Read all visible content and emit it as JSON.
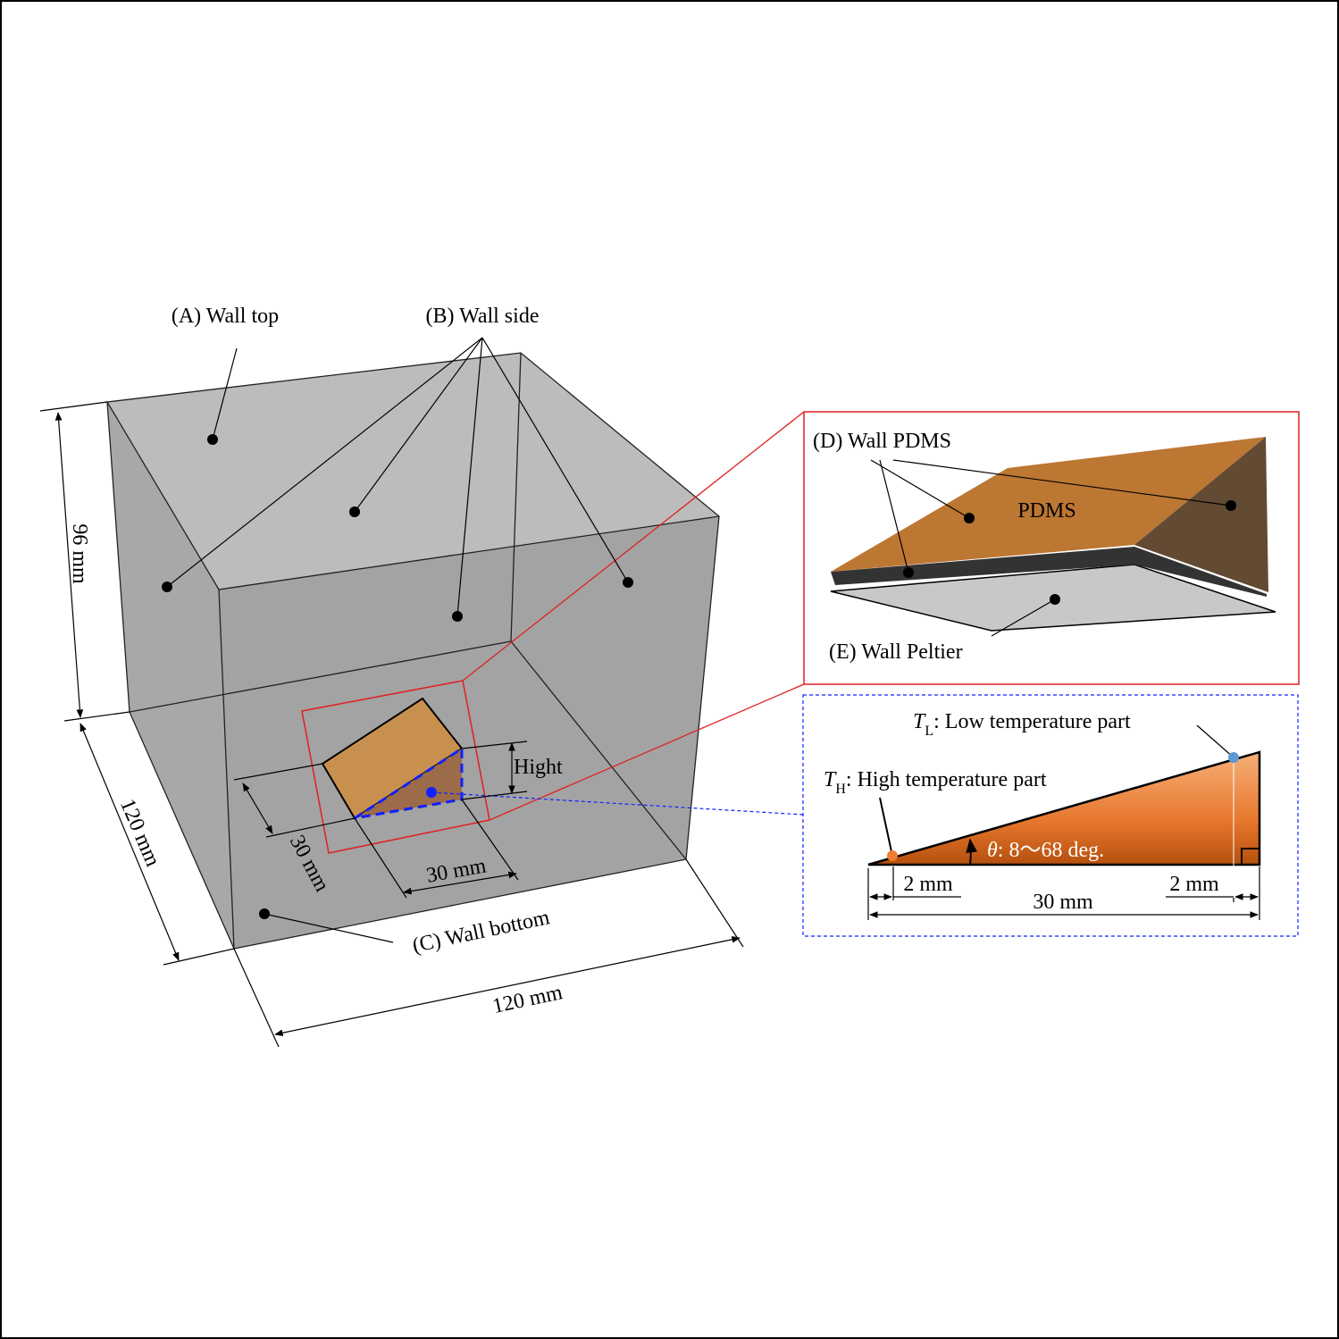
{
  "labels": {
    "wall_top": "(A) Wall top",
    "wall_side": "(B) Wall side",
    "wall_bottom": "(C) Wall bottom",
    "wall_pdms": "(D) Wall PDMS",
    "pdms": "PDMS",
    "wall_peltier": "(E) Wall Peltier"
  },
  "dimensions": {
    "box_height": "96 mm",
    "box_depth": "120 mm",
    "box_width": "120 mm",
    "wedge_depth": "30 mm",
    "wedge_width": "30 mm",
    "wedge_height": "Hight"
  },
  "cross_section": {
    "low_temp": {
      "symbol": "T",
      "subscript": "L",
      "text": ": Low temperature part"
    },
    "high_temp": {
      "symbol": "T",
      "subscript": "H",
      "text": ": High temperature part"
    },
    "angle": {
      "symbol": "θ",
      "text": ": 8〜68 deg."
    },
    "margin_left": "2 mm",
    "margin_right": "2 mm",
    "length": "30 mm"
  }
}
